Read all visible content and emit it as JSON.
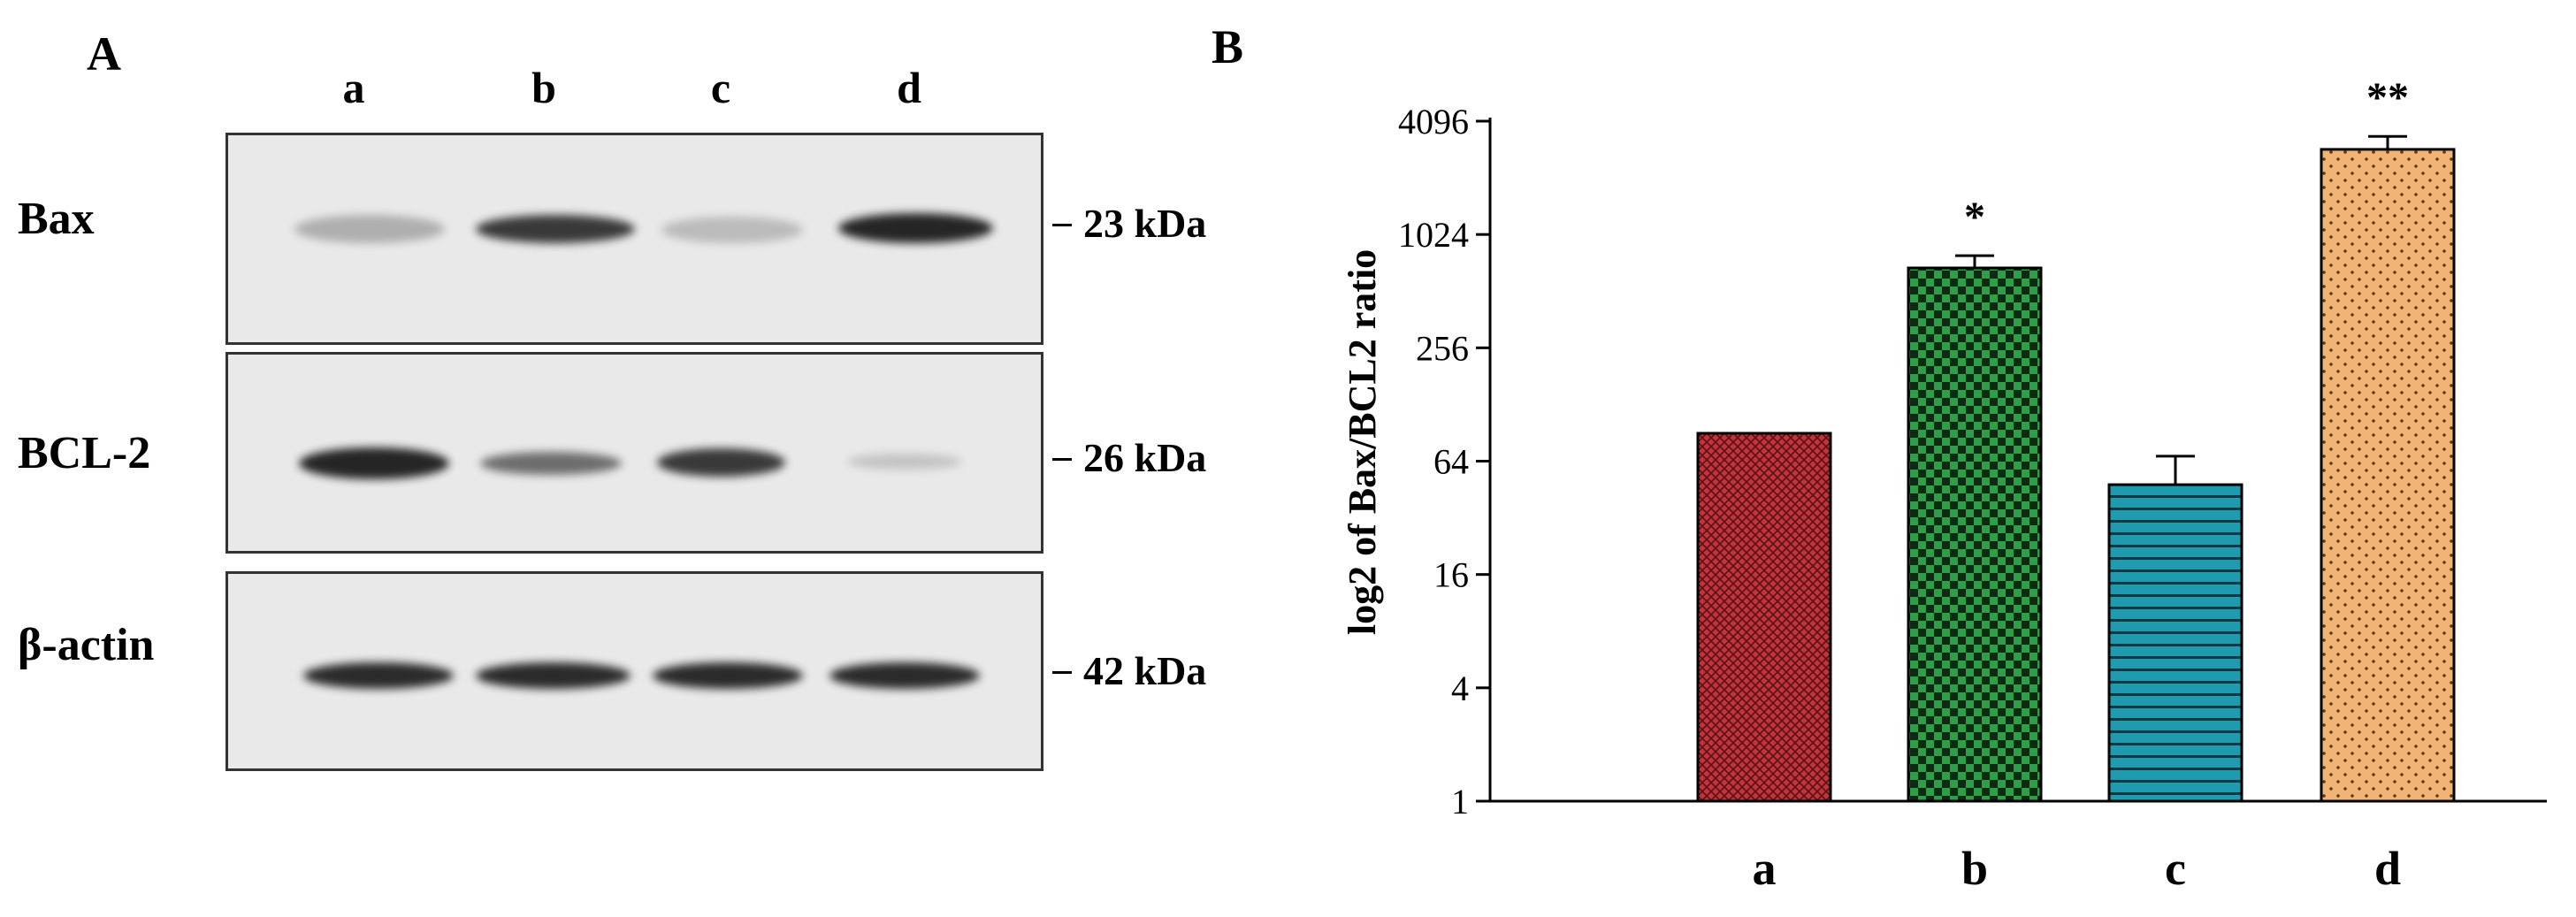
{
  "panel_a": {
    "letter": "A",
    "lanes": [
      "a",
      "b",
      "c",
      "d"
    ],
    "rows": [
      {
        "protein": "Bax",
        "kda": "23 kDa",
        "band_intensity": [
          0.3,
          0.85,
          0.25,
          0.95
        ]
      },
      {
        "protein": "BCL-2",
        "kda": "26 kDa",
        "band_intensity": [
          0.95,
          0.6,
          0.8,
          0.2
        ]
      },
      {
        "protein": "β-actin",
        "kda": "42 kDa",
        "band_intensity": [
          0.95,
          0.95,
          0.95,
          0.95
        ]
      }
    ]
  },
  "panel_b": {
    "letter": "B",
    "chart_data": {
      "type": "bar",
      "categories": [
        "a",
        "b",
        "c",
        "d"
      ],
      "values": [
        90,
        680,
        48,
        2900
      ],
      "errors": [
        0,
        110,
        20,
        500
      ],
      "significance": [
        "",
        "*",
        "",
        "**"
      ],
      "ylabel": "log2 of Bax/BCL2 ratio",
      "xlabel": "",
      "yscale": "log2",
      "ylim": [
        1,
        4096
      ],
      "yticks": [
        "1",
        "4",
        "16",
        "64",
        "256",
        "1024",
        "4096"
      ],
      "grid": false,
      "colors": [
        "#c0343c",
        "#2e9e48",
        "#1f9bb0",
        "#f2b474"
      ],
      "patterns": [
        "crosshatch-fine",
        "checkerboard",
        "horizontal-lines",
        "dots"
      ]
    }
  }
}
